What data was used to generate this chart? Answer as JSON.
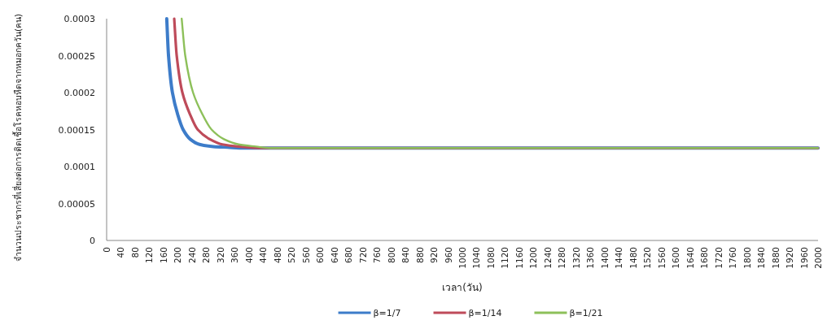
{
  "chart_data": {
    "type": "line",
    "xlabel": "เวลา(วัน)",
    "ylabel": "จำนวนประชากรที่เสี่ยงต่อการติดเชื้อโรคหอบหืดจากหมอกควัน(คน)",
    "xlim": [
      0,
      2000
    ],
    "xticks": [
      0,
      40,
      80,
      120,
      160,
      200,
      240,
      280,
      320,
      360,
      400,
      440,
      480,
      520,
      560,
      600,
      640,
      680,
      720,
      760,
      800,
      840,
      880,
      920,
      960,
      1000,
      1040,
      1080,
      1120,
      1160,
      1200,
      1240,
      1280,
      1320,
      1360,
      1400,
      1440,
      1480,
      1520,
      1560,
      1600,
      1640,
      1680,
      1720,
      1760,
      1800,
      1840,
      1880,
      1920,
      1960,
      2000
    ],
    "ylim": [
      0,
      0.0003
    ],
    "yticks": [
      0,
      {
        "value": 5e-05,
        "label": "0.00005"
      },
      0.0001,
      0.00015,
      0.0002,
      0.00025,
      0.0003
    ],
    "grid": false,
    "legend": "bottom",
    "marker": "none",
    "line_style": "solid",
    "series": [
      {
        "name": "β=1/7",
        "color": "#3d7cc9",
        "x": [
          169,
          174,
          185,
          200,
          215,
          235,
          261,
          300,
          340,
          387,
          2000
        ],
        "values": [
          0.0003,
          0.00025,
          0.0002,
          0.00017,
          0.00015,
          0.000137,
          0.00013,
          0.000127,
          0.000126,
          0.000125,
          0.000125
        ]
      },
      {
        "name": "β=1/14",
        "color": "#be4b5a",
        "x": [
          190,
          197,
          213,
          235,
          256,
          290,
          325,
          370,
          440,
          2000
        ],
        "values": [
          0.0003,
          0.00025,
          0.0002,
          0.00017,
          0.00015,
          0.000137,
          0.00013,
          0.000127,
          0.000125,
          0.000125
        ]
      },
      {
        "name": "β=1/21",
        "color": "#8dc05a",
        "x": [
          211,
          221,
          243,
          270,
          295,
          330,
          371,
          420,
          460,
          2000
        ],
        "values": [
          0.0003,
          0.00025,
          0.0002,
          0.00017,
          0.00015,
          0.000137,
          0.00013,
          0.000127,
          0.000125,
          0.000125
        ]
      }
    ]
  }
}
